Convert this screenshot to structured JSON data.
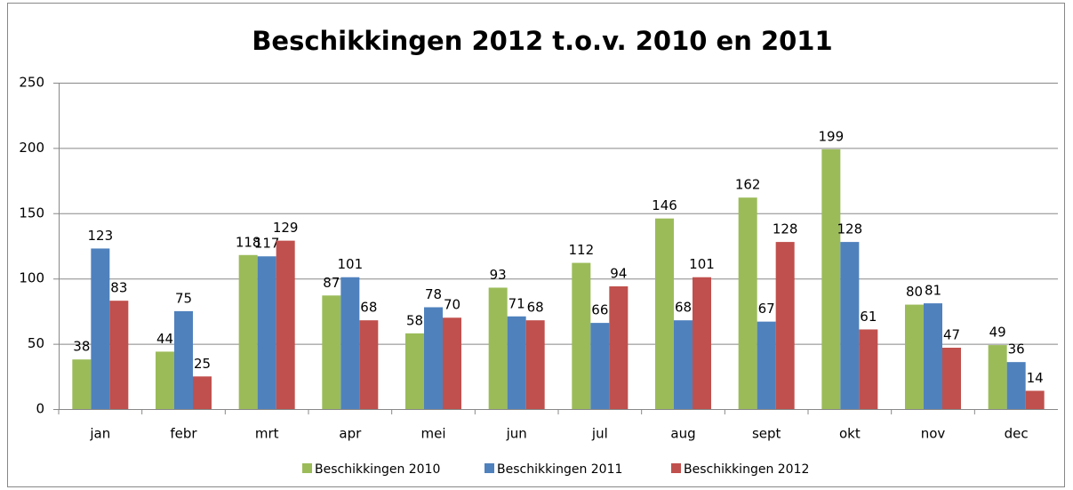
{
  "chart_data": {
    "type": "bar",
    "title": "Beschikkingen 2012 t.o.v.  2010 en 2011",
    "categories": [
      "jan",
      "febr",
      "mrt",
      "apr",
      "mei",
      "jun",
      "jul",
      "aug",
      "sept",
      "okt",
      "nov",
      "dec"
    ],
    "series": [
      {
        "name": "Beschikkingen 2010",
        "color": "#9bbb59",
        "values": [
          38,
          44,
          118,
          87,
          58,
          93,
          112,
          146,
          162,
          199,
          80,
          49
        ]
      },
      {
        "name": "Beschikkingen 2011",
        "color": "#4f81bd",
        "values": [
          123,
          75,
          117,
          101,
          78,
          71,
          66,
          68,
          67,
          128,
          81,
          36
        ]
      },
      {
        "name": "Beschikkingen 2012",
        "color": "#c0504d",
        "values": [
          83,
          25,
          129,
          68,
          70,
          68,
          94,
          101,
          128,
          61,
          47,
          14
        ]
      }
    ],
    "ylim": [
      0,
      250
    ],
    "yticks": [
      0,
      50,
      100,
      150,
      200,
      250
    ],
    "grid": true,
    "legend": "bottom"
  }
}
